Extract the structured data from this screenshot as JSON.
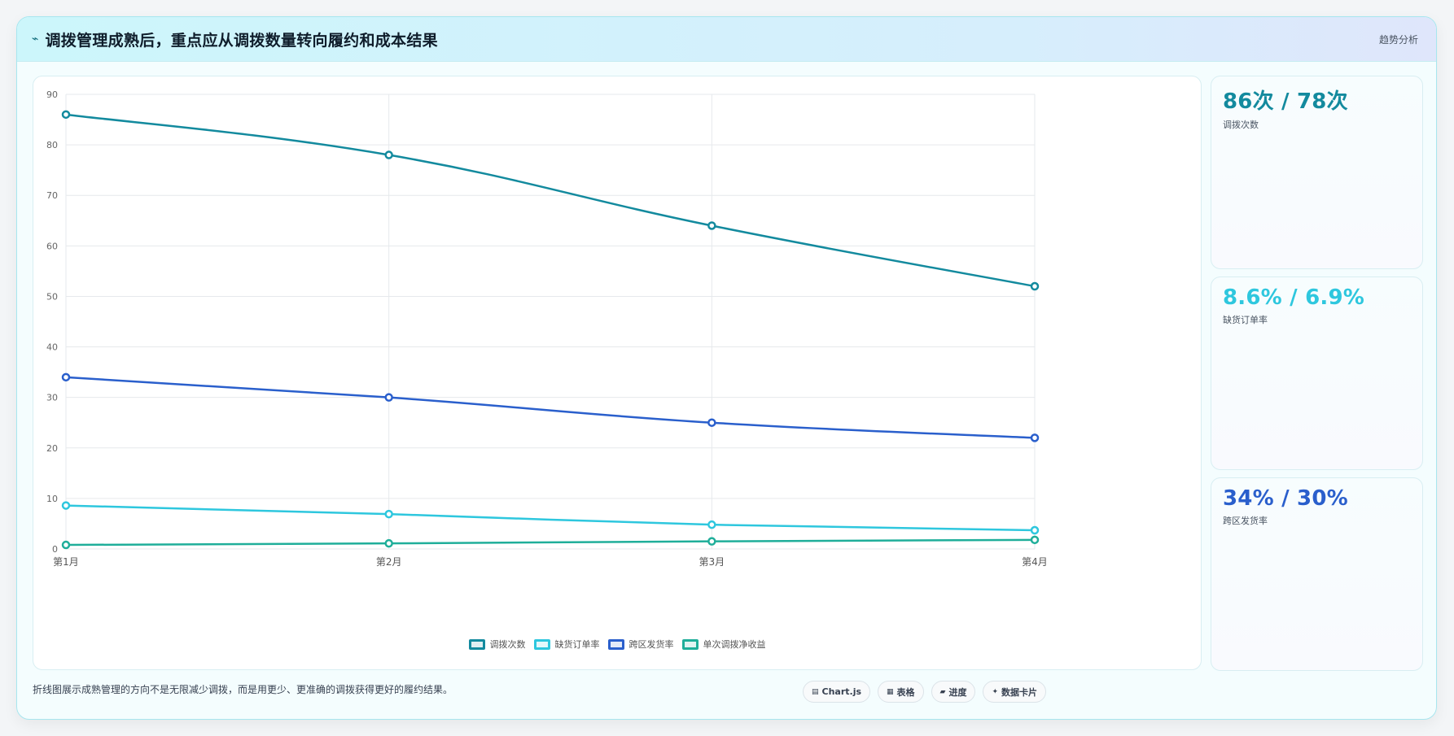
{
  "header": {
    "icon": "trend-icon",
    "icon_glyph": "⌁",
    "title": "调拨管理成熟后，重点应从调拨数量转向履约和成本结果",
    "tag": "趋势分析"
  },
  "chart_data": {
    "type": "line",
    "categories": [
      "第1月",
      "第2月",
      "第3月",
      "第4月"
    ],
    "ylim": [
      0,
      90
    ],
    "yticks": [
      0,
      10,
      20,
      30,
      40,
      50,
      60,
      70,
      80,
      90
    ],
    "grid": true,
    "legend_position": "bottom",
    "series": [
      {
        "name": "调拨次数",
        "color": "#138a9e",
        "values": [
          86,
          78,
          64,
          52
        ]
      },
      {
        "name": "缺货订单率",
        "color": "#2ec7de",
        "values": [
          8.6,
          6.9,
          4.8,
          3.7
        ]
      },
      {
        "name": "跨区发货率",
        "color": "#2a5fcc",
        "values": [
          34,
          30,
          25,
          22
        ]
      },
      {
        "name": "单次调拨净收益",
        "color": "#1fae9a",
        "values": [
          0.8,
          1.1,
          1.5,
          1.8
        ]
      }
    ]
  },
  "stats": [
    {
      "value": "86次 / 78次",
      "label": "调拨次数",
      "color": "#138a9e"
    },
    {
      "value": "8.6% / 6.9%",
      "label": "缺货订单率",
      "color": "#2ec7de"
    },
    {
      "value": "34% / 30%",
      "label": "跨区发货率",
      "color": "#2a5fcc"
    }
  ],
  "footer": {
    "note": "折线图展示成熟管理的方向不是无限减少调拨，而是用更少、更准确的调拨获得更好的履约结果。",
    "chips": [
      {
        "icon": "chart-icon",
        "glyph": "▤",
        "label": "Chart.js"
      },
      {
        "icon": "table-icon",
        "glyph": "▦",
        "label": "表格"
      },
      {
        "icon": "progress-icon",
        "glyph": "▰",
        "label": "进度"
      },
      {
        "icon": "card-icon",
        "glyph": "✦",
        "label": "数据卡片"
      }
    ]
  }
}
